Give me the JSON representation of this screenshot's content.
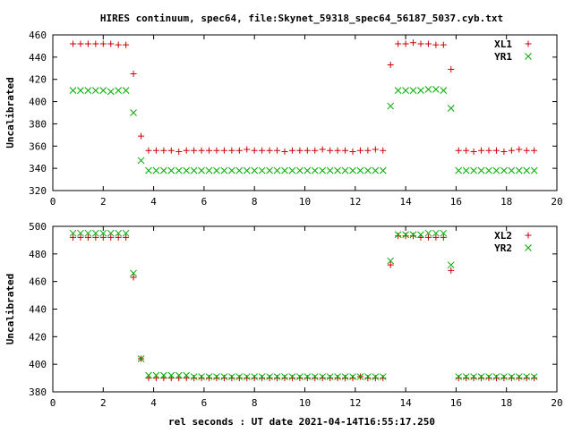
{
  "title": "HIRES continuum, spec64, file:Skynet_59318_spec64_56187_5037.cyb.txt",
  "xlabel": "rel seconds : UT date 2021-04-14T16:55:17.250",
  "chart_data": [
    {
      "type": "scatter",
      "ylabel": "Uncalibrated",
      "xlim": [
        0,
        20
      ],
      "ylim": [
        320,
        460
      ],
      "xticks": [
        0,
        2,
        4,
        6,
        8,
        10,
        12,
        14,
        16,
        18,
        20
      ],
      "yticks": [
        320,
        340,
        360,
        380,
        400,
        420,
        440,
        460
      ],
      "legend": "top-right",
      "series": [
        {
          "name": "XL1",
          "marker": "plus",
          "color": "#cc0000",
          "x": [
            0.8,
            1.1,
            1.4,
            1.7,
            2.0,
            2.3,
            2.6,
            2.9,
            3.2,
            3.5,
            3.8,
            4.1,
            4.4,
            4.7,
            5.0,
            5.3,
            5.6,
            5.9,
            6.2,
            6.5,
            6.8,
            7.1,
            7.4,
            7.7,
            8.0,
            8.3,
            8.6,
            8.9,
            9.2,
            9.5,
            9.8,
            10.1,
            10.4,
            10.7,
            11.0,
            11.3,
            11.6,
            11.9,
            12.2,
            12.5,
            12.8,
            13.1,
            13.4,
            13.7,
            14.0,
            14.3,
            14.6,
            14.9,
            15.2,
            15.5,
            15.8,
            16.1,
            16.4,
            16.7,
            17.0,
            17.3,
            17.6,
            17.9,
            18.2,
            18.5,
            18.8,
            19.1
          ],
          "y": [
            452,
            452,
            452,
            452,
            452,
            452,
            451,
            451,
            425,
            369,
            356,
            356,
            356,
            356,
            355,
            356,
            356,
            356,
            356,
            356,
            356,
            356,
            356,
            357,
            356,
            356,
            356,
            356,
            355,
            356,
            356,
            356,
            356,
            357,
            356,
            356,
            356,
            355,
            356,
            356,
            357,
            356,
            433,
            452,
            452,
            453,
            452,
            452,
            451,
            451,
            429,
            356,
            356,
            355,
            356,
            356,
            356,
            355,
            356,
            357,
            356,
            356
          ]
        },
        {
          "name": "YR1",
          "marker": "cross",
          "color": "#00aa00",
          "x": [
            0.8,
            1.1,
            1.4,
            1.7,
            2.0,
            2.3,
            2.6,
            2.9,
            3.2,
            3.5,
            3.8,
            4.1,
            4.4,
            4.7,
            5.0,
            5.3,
            5.6,
            5.9,
            6.2,
            6.5,
            6.8,
            7.1,
            7.4,
            7.7,
            8.0,
            8.3,
            8.6,
            8.9,
            9.2,
            9.5,
            9.8,
            10.1,
            10.4,
            10.7,
            11.0,
            11.3,
            11.6,
            11.9,
            12.2,
            12.5,
            12.8,
            13.1,
            13.4,
            13.7,
            14.0,
            14.3,
            14.6,
            14.9,
            15.2,
            15.5,
            15.8,
            16.1,
            16.4,
            16.7,
            17.0,
            17.3,
            17.6,
            17.9,
            18.2,
            18.5,
            18.8,
            19.1
          ],
          "y": [
            410,
            410,
            410,
            410,
            410,
            409,
            410,
            410,
            390,
            347,
            338,
            338,
            338,
            338,
            338,
            338,
            338,
            338,
            338,
            338,
            338,
            338,
            338,
            338,
            338,
            338,
            338,
            338,
            338,
            338,
            338,
            338,
            338,
            338,
            338,
            338,
            338,
            338,
            338,
            338,
            338,
            338,
            396,
            410,
            410,
            410,
            410,
            411,
            411,
            410,
            394,
            338,
            338,
            338,
            338,
            338,
            338,
            338,
            338,
            338,
            338,
            338
          ]
        }
      ]
    },
    {
      "type": "scatter",
      "ylabel": "Uncalibrated",
      "xlim": [
        0,
        20
      ],
      "ylim": [
        380,
        500
      ],
      "xticks": [
        0,
        2,
        4,
        6,
        8,
        10,
        12,
        14,
        16,
        18,
        20
      ],
      "yticks": [
        380,
        400,
        420,
        440,
        460,
        480,
        500
      ],
      "legend": "top-right",
      "series": [
        {
          "name": "XL2",
          "marker": "plus",
          "color": "#cc0000",
          "x": [
            0.8,
            1.1,
            1.4,
            1.7,
            2.0,
            2.3,
            2.6,
            2.9,
            3.2,
            3.5,
            3.8,
            4.1,
            4.4,
            4.7,
            5.0,
            5.3,
            5.6,
            5.9,
            6.2,
            6.5,
            6.8,
            7.1,
            7.4,
            7.7,
            8.0,
            8.3,
            8.6,
            8.9,
            9.2,
            9.5,
            9.8,
            10.1,
            10.4,
            10.7,
            11.0,
            11.3,
            11.6,
            11.9,
            12.2,
            12.5,
            12.8,
            13.1,
            13.4,
            13.7,
            14.0,
            14.3,
            14.6,
            14.9,
            15.2,
            15.5,
            15.8,
            16.1,
            16.4,
            16.7,
            17.0,
            17.3,
            17.6,
            17.9,
            18.2,
            18.5,
            18.8,
            19.1
          ],
          "y": [
            492,
            492,
            492,
            492,
            492,
            492,
            492,
            492,
            463,
            404,
            390,
            390,
            390,
            390,
            390,
            390,
            390,
            390,
            390,
            390,
            390,
            390,
            390,
            390,
            390,
            390,
            390,
            390,
            390,
            390,
            390,
            390,
            390,
            390,
            390,
            390,
            390,
            390,
            391,
            390,
            390,
            390,
            472,
            493,
            493,
            493,
            492,
            492,
            492,
            492,
            468,
            390,
            390,
            390,
            390,
            390,
            390,
            390,
            390,
            390,
            390,
            390
          ]
        },
        {
          "name": "YR2",
          "marker": "cross",
          "color": "#00aa00",
          "x": [
            0.8,
            1.1,
            1.4,
            1.7,
            2.0,
            2.3,
            2.6,
            2.9,
            3.2,
            3.5,
            3.8,
            4.1,
            4.4,
            4.7,
            5.0,
            5.3,
            5.6,
            5.9,
            6.2,
            6.5,
            6.8,
            7.1,
            7.4,
            7.7,
            8.0,
            8.3,
            8.6,
            8.9,
            9.2,
            9.5,
            9.8,
            10.1,
            10.4,
            10.7,
            11.0,
            11.3,
            11.6,
            11.9,
            12.2,
            12.5,
            12.8,
            13.1,
            13.4,
            13.7,
            14.0,
            14.3,
            14.6,
            14.9,
            15.2,
            15.5,
            15.8,
            16.1,
            16.4,
            16.7,
            17.0,
            17.3,
            17.6,
            17.9,
            18.2,
            18.5,
            18.8,
            19.1
          ],
          "y": [
            495,
            495,
            495,
            495,
            495,
            495,
            495,
            495,
            466,
            404,
            392,
            392,
            392,
            392,
            392,
            392,
            391,
            391,
            391,
            391,
            391,
            391,
            391,
            391,
            391,
            391,
            391,
            391,
            391,
            391,
            391,
            391,
            391,
            391,
            391,
            391,
            391,
            391,
            391,
            391,
            391,
            391,
            475,
            494,
            494,
            494,
            494,
            495,
            495,
            495,
            472,
            391,
            391,
            391,
            391,
            391,
            391,
            391,
            391,
            391,
            391,
            391
          ]
        }
      ]
    }
  ]
}
